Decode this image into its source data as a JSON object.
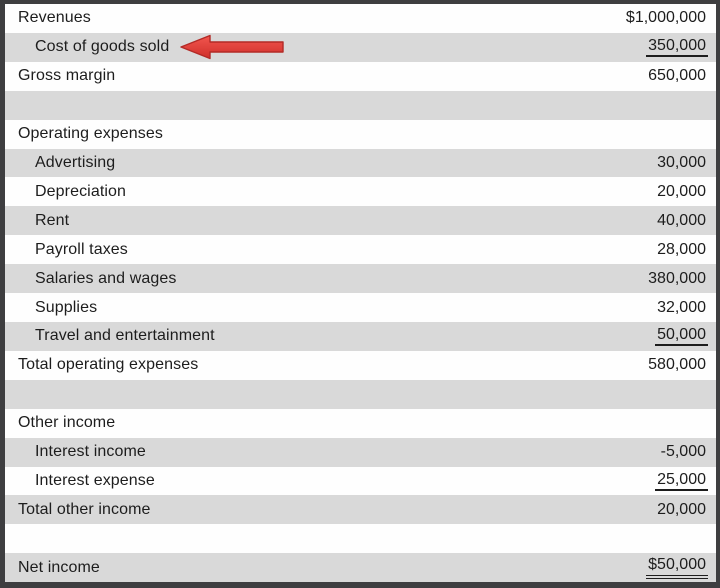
{
  "statement": {
    "rows": [
      {
        "name": "row-revenues",
        "label": "Revenues",
        "value": "$1,000,000",
        "indent": false,
        "shaded": false,
        "underline": "none",
        "arrow": false
      },
      {
        "name": "row-cost-of-goods-sold",
        "label": "Cost of goods sold",
        "value": "350,000",
        "indent": true,
        "shaded": true,
        "underline": "single",
        "arrow": true
      },
      {
        "name": "row-gross-margin",
        "label": "Gross margin",
        "value": "650,000",
        "indent": false,
        "shaded": false,
        "underline": "none",
        "arrow": false
      },
      {
        "name": "row-spacer-1",
        "label": "",
        "value": "",
        "indent": false,
        "shaded": true,
        "underline": "none",
        "arrow": false
      },
      {
        "name": "row-operating-expenses-header",
        "label": "Operating expenses",
        "value": "",
        "indent": false,
        "shaded": false,
        "underline": "none",
        "arrow": false
      },
      {
        "name": "row-advertising",
        "label": "Advertising",
        "value": "30,000",
        "indent": true,
        "shaded": true,
        "underline": "none",
        "arrow": false
      },
      {
        "name": "row-depreciation",
        "label": "Depreciation",
        "value": "20,000",
        "indent": true,
        "shaded": false,
        "underline": "none",
        "arrow": false
      },
      {
        "name": "row-rent",
        "label": "Rent",
        "value": "40,000",
        "indent": true,
        "shaded": true,
        "underline": "none",
        "arrow": false
      },
      {
        "name": "row-payroll-taxes",
        "label": "Payroll taxes",
        "value": "28,000",
        "indent": true,
        "shaded": false,
        "underline": "none",
        "arrow": false
      },
      {
        "name": "row-salaries-and-wages",
        "label": "Salaries and wages",
        "value": "380,000",
        "indent": true,
        "shaded": true,
        "underline": "none",
        "arrow": false
      },
      {
        "name": "row-supplies",
        "label": "Supplies",
        "value": "32,000",
        "indent": true,
        "shaded": false,
        "underline": "none",
        "arrow": false
      },
      {
        "name": "row-travel-and-entertainment",
        "label": "Travel and entertainment",
        "value": "50,000",
        "indent": true,
        "shaded": true,
        "underline": "single",
        "arrow": false
      },
      {
        "name": "row-total-operating-expenses",
        "label": "Total operating expenses",
        "value": "580,000",
        "indent": false,
        "shaded": false,
        "underline": "none",
        "arrow": false
      },
      {
        "name": "row-spacer-2",
        "label": "",
        "value": "",
        "indent": false,
        "shaded": true,
        "underline": "none",
        "arrow": false
      },
      {
        "name": "row-other-income-header",
        "label": "Other income",
        "value": "",
        "indent": false,
        "shaded": false,
        "underline": "none",
        "arrow": false
      },
      {
        "name": "row-interest-income",
        "label": "Interest income",
        "value": "-5,000",
        "indent": true,
        "shaded": true,
        "underline": "none",
        "arrow": false
      },
      {
        "name": "row-interest-expense",
        "label": "Interest expense",
        "value": "25,000",
        "indent": true,
        "shaded": false,
        "underline": "single",
        "arrow": false
      },
      {
        "name": "row-total-other-income",
        "label": "Total other income",
        "value": "20,000",
        "indent": false,
        "shaded": true,
        "underline": "none",
        "arrow": false
      },
      {
        "name": "row-spacer-3",
        "label": "",
        "value": "",
        "indent": false,
        "shaded": false,
        "underline": "none",
        "arrow": false
      },
      {
        "name": "row-net-income",
        "label": "Net income",
        "value": "$50,000",
        "indent": false,
        "shaded": true,
        "underline": "double",
        "arrow": false
      }
    ]
  },
  "annotation": {
    "arrow_icon": "red-arrow-left-icon",
    "arrow_points_to": "Cost of goods sold"
  },
  "colors": {
    "row_shaded": "#d9d9d9",
    "row_plain": "#fefefe",
    "frame_border": "#3e3e40",
    "text": "#1d1d1d",
    "arrow_red_top": "#f2564f",
    "arrow_red_bottom": "#cf2f2a",
    "arrow_red_outline": "#b32a26"
  }
}
